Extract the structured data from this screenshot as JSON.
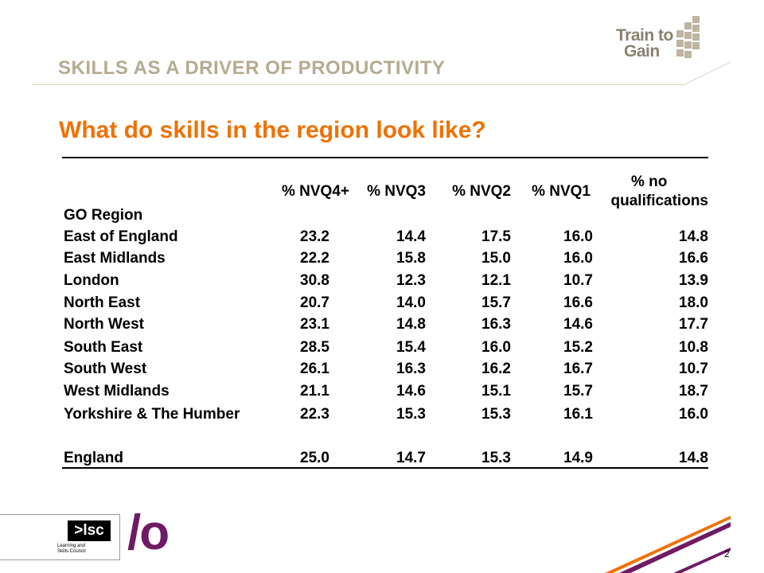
{
  "slide": {
    "section_title": "SKILLS AS A DRIVER OF PRODUCTIVITY",
    "question": "What do skills in the region look like?",
    "page_number": "2"
  },
  "logos": {
    "train_to_gain_line1": "Train to",
    "train_to_gain_line2": "Gain",
    "lsc_mark": ">lsc",
    "lsc_line1": "Learning and",
    "lsc_line2": "Skills Council",
    "io_mark": "/o"
  },
  "colors": {
    "section_title": "#b5ab90",
    "question": "#ee7203",
    "io_mark": "#6e1b63",
    "corner_stripe_orange": "#ee7203",
    "corner_stripe_purple": "#6e1b63"
  },
  "table": {
    "region_header": "GO Region",
    "columns": [
      "% NVQ4+",
      "% NVQ3",
      "% NVQ2",
      "% NVQ1",
      "% no",
      "qualifications"
    ],
    "rows": [
      {
        "region": "East of England",
        "values": [
          "23.2",
          "14.4",
          "17.5",
          "16.0",
          "14.8"
        ]
      },
      {
        "region": "East Midlands",
        "values": [
          "22.2",
          "15.8",
          "15.0",
          "16.0",
          "16.6"
        ]
      },
      {
        "region": "London",
        "values": [
          "30.8",
          "12.3",
          "12.1",
          "10.7",
          "13.9"
        ]
      },
      {
        "region": "North East",
        "values": [
          "20.7",
          "14.0",
          "15.7",
          "16.6",
          "18.0"
        ]
      },
      {
        "region": "North West",
        "values": [
          "23.1",
          "14.8",
          "16.3",
          "14.6",
          "17.7"
        ]
      },
      {
        "region": "South East",
        "values": [
          "28.5",
          "15.4",
          "16.0",
          "15.2",
          "10.8"
        ]
      },
      {
        "region": "South West",
        "values": [
          "26.1",
          "16.3",
          "16.2",
          "16.7",
          "10.7"
        ]
      },
      {
        "region": "West Midlands",
        "values": [
          "21.1",
          "14.6",
          "15.1",
          "15.7",
          "18.7"
        ]
      },
      {
        "region": "Yorkshire & The Humber",
        "values": [
          "22.3",
          "15.3",
          "15.3",
          "16.1",
          "16.0"
        ]
      }
    ],
    "total": {
      "region": "England",
      "values": [
        "25.0",
        "14.7",
        "15.3",
        "14.9",
        "14.8"
      ]
    }
  }
}
